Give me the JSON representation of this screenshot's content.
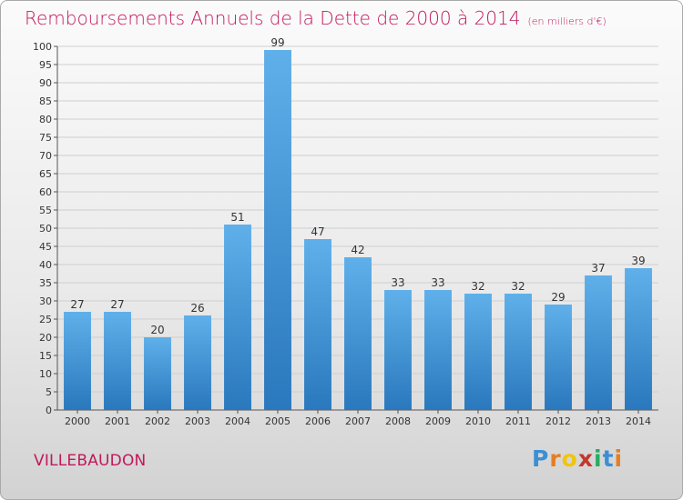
{
  "header": {
    "title": "Remboursements Annuels de la Dette de 2000 à 2014",
    "unit": "(en milliers d'€)"
  },
  "footer": {
    "commune": "VILLEBAUDON",
    "logo_letters": [
      "P",
      "r",
      "o",
      "x",
      "i",
      "t",
      "i"
    ],
    "logo_colors": [
      "#3a8fd6",
      "#e67e22",
      "#f1c40f",
      "#c0392b",
      "#27ae60",
      "#3a8fd6",
      "#e67e22"
    ]
  },
  "colors": {
    "title": "#c2185b",
    "bar_top": "#5fb0ea",
    "bar_bottom": "#2a78bd",
    "grid": "#cfcfcf",
    "axis": "#555555",
    "text": "#333333"
  },
  "chart_data": {
    "type": "bar",
    "title": "Remboursements Annuels de la Dette de 2000 à 2014",
    "subtitle": "(en milliers d'€)",
    "xlabel": "",
    "ylabel": "",
    "categories": [
      "2000",
      "2001",
      "2002",
      "2003",
      "2004",
      "2005",
      "2006",
      "2007",
      "2008",
      "2009",
      "2010",
      "2011",
      "2012",
      "2013",
      "2014"
    ],
    "values": [
      27,
      27,
      20,
      26,
      51,
      99,
      47,
      42,
      33,
      33,
      32,
      32,
      29,
      37,
      39
    ],
    "ylim": [
      0,
      100
    ],
    "ytick_step": 5,
    "grid": true,
    "legend": "none",
    "data_labels": true
  }
}
